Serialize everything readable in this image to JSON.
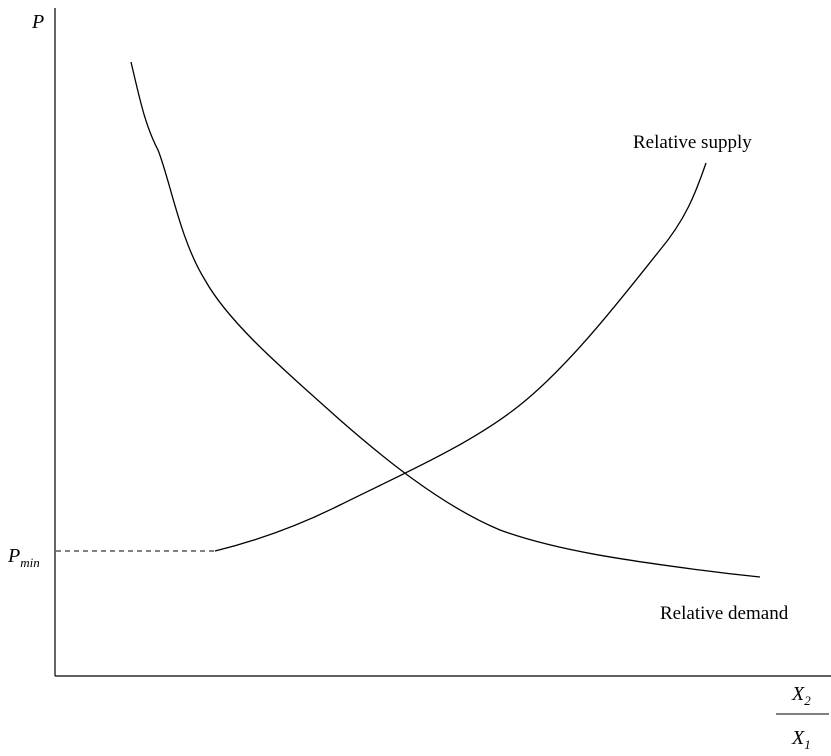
{
  "y_axis_label": "P",
  "x_axis_label": {
    "numerator": {
      "base": "X",
      "sub": "2"
    },
    "denominator": {
      "base": "X",
      "sub": "1"
    }
  },
  "price_floor": {
    "base": "P",
    "sub": "min"
  },
  "curves": {
    "supply": "Relative supply",
    "demand": "Relative demand"
  }
}
